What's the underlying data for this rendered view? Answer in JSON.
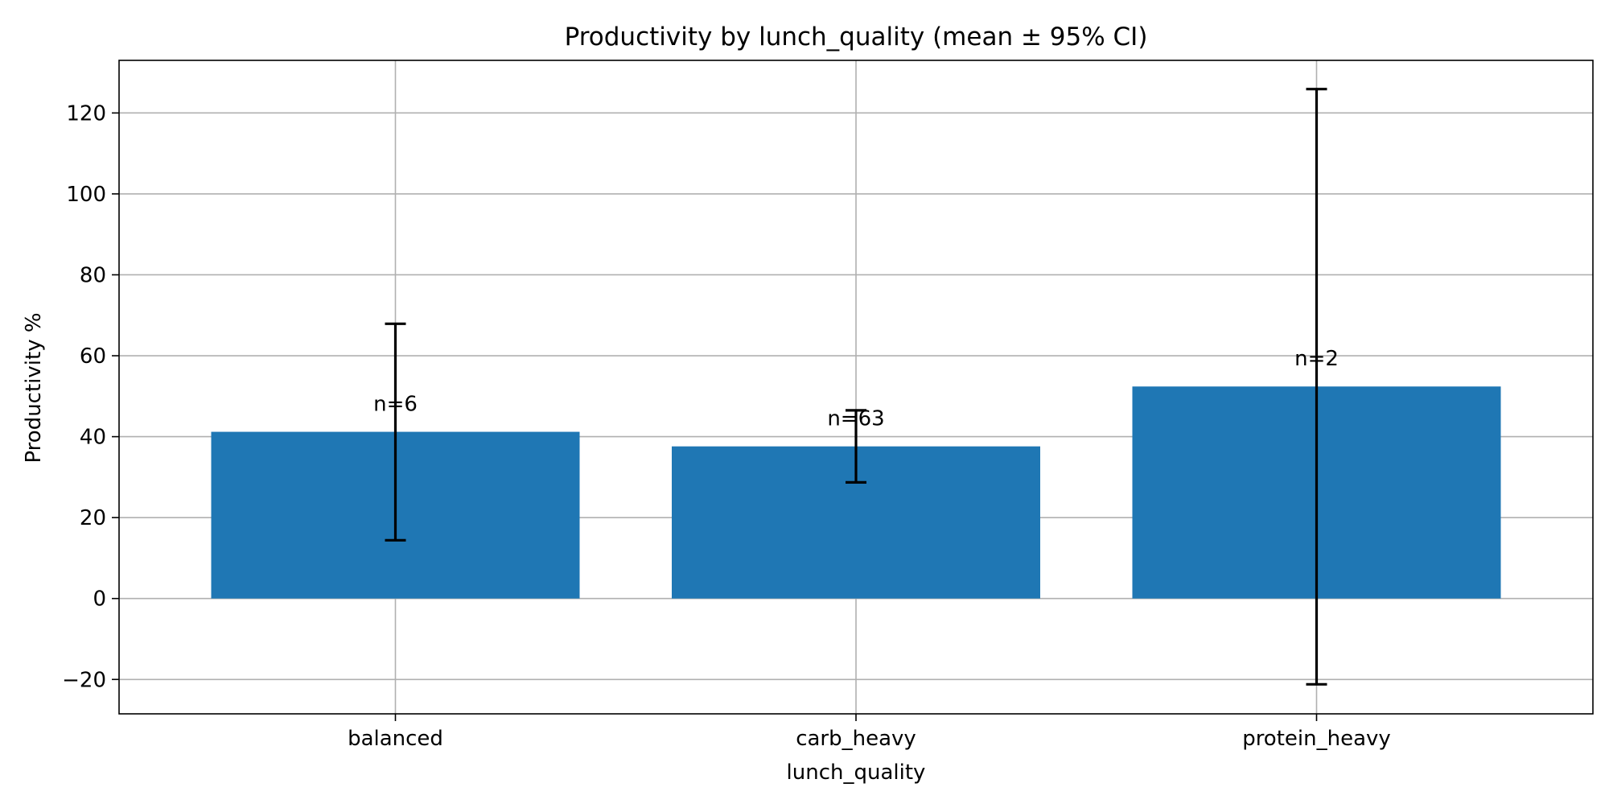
{
  "chart_data": {
    "type": "bar",
    "title": "Productivity by lunch_quality (mean ± 95% CI)",
    "xlabel": "lunch_quality",
    "ylabel": "Productivity %",
    "categories": [
      "balanced",
      "carb_heavy",
      "protein_heavy"
    ],
    "values": [
      41.2,
      37.6,
      52.4
    ],
    "ci_low": [
      14.4,
      28.7,
      -21.2
    ],
    "ci_high": [
      67.9,
      46.5,
      125.9
    ],
    "annotations": [
      "n=6",
      "n=63",
      "n=2"
    ],
    "ylim": [
      -28.5,
      133
    ],
    "yticks": [
      -20,
      0,
      20,
      40,
      60,
      80,
      100,
      120
    ],
    "ytick_labels": [
      "−20",
      "0",
      "20",
      "40",
      "60",
      "80",
      "100",
      "120"
    ],
    "grid": true,
    "bar_color": "#1f77b4",
    "errorbar_color": "#000000",
    "grid_color": "#b0b0b0"
  }
}
